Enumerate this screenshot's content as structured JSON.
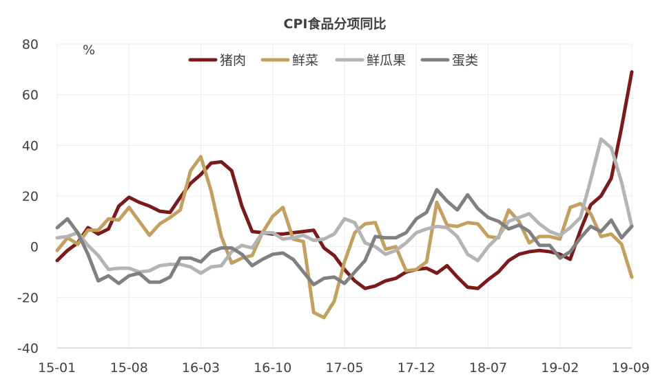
{
  "chart_data": {
    "type": "line",
    "title": "CPI食品分项同比",
    "unit_label": "%",
    "xlabel": "",
    "ylabel": "",
    "ylim": [
      -40,
      80
    ],
    "yticks": [
      "80",
      "60",
      "40",
      "20",
      "0",
      "-20",
      "-40"
    ],
    "ytick_values": [
      80,
      60,
      40,
      20,
      0,
      -20,
      -40
    ],
    "xticks": [
      "15-01",
      "15-08",
      "16-03",
      "16-10",
      "17-05",
      "17-12",
      "18-07",
      "19-02",
      "19-09"
    ],
    "xtick_index": [
      0,
      7,
      14,
      21,
      28,
      35,
      42,
      49,
      56
    ],
    "grid": true,
    "legend_position": "top",
    "x": [
      "15-01",
      "15-02",
      "15-03",
      "15-04",
      "15-05",
      "15-06",
      "15-07",
      "15-08",
      "15-09",
      "15-10",
      "15-11",
      "15-12",
      "16-01",
      "16-02",
      "16-03",
      "16-04",
      "16-05",
      "16-06",
      "16-07",
      "16-08",
      "16-09",
      "16-10",
      "16-11",
      "16-12",
      "17-01",
      "17-02",
      "17-03",
      "17-04",
      "17-05",
      "17-06",
      "17-07",
      "17-08",
      "17-09",
      "17-10",
      "17-11",
      "17-12",
      "18-01",
      "18-02",
      "18-03",
      "18-04",
      "18-05",
      "18-06",
      "18-07",
      "18-08",
      "18-09",
      "18-10",
      "18-11",
      "18-12",
      "19-01",
      "19-02",
      "19-03",
      "19-04",
      "19-05",
      "19-06",
      "19-07",
      "19-08",
      "19-09"
    ],
    "series": [
      {
        "name": "猪肉",
        "color": "#7b1a1a",
        "values": [
          -5.5,
          -1.5,
          1.5,
          7.5,
          5,
          7,
          16,
          19.5,
          17.5,
          16,
          14,
          13.5,
          19.5,
          25,
          28.5,
          33,
          33.5,
          30,
          16,
          6,
          5.5,
          5,
          5,
          5.5,
          6,
          6.5,
          -0.5,
          -3.5,
          -9,
          -13.5,
          -16.5,
          -15.5,
          -13.5,
          -12.5,
          -10,
          -9,
          -8.5,
          -10.5,
          -7.5,
          -12,
          -16,
          -16.5,
          -13,
          -10,
          -5.5,
          -3,
          -2,
          -1.5,
          -2,
          -3,
          -5,
          6.5,
          16.5,
          20,
          27,
          47,
          69
        ]
      },
      {
        "name": "鲜菜",
        "color": "#c4a060",
        "values": [
          -1.5,
          3.5,
          1,
          6.5,
          6.5,
          11,
          10.5,
          15.5,
          10,
          4.5,
          9,
          11.5,
          14.5,
          30,
          35.5,
          22,
          4,
          -6.5,
          -4.5,
          -3.5,
          5.5,
          12,
          15.5,
          3,
          2,
          -26,
          -28,
          -21.5,
          -6,
          5.5,
          9,
          9.5,
          -1,
          0,
          -9.5,
          -9,
          -6,
          17.5,
          8.5,
          8,
          9.5,
          9,
          4,
          3.5,
          14.5,
          10,
          1.5,
          4,
          4,
          3,
          15.5,
          17,
          13,
          4,
          5,
          1,
          -12
        ]
      },
      {
        "name": "鲜瓜果",
        "color": "#b4b4b4",
        "values": [
          3.5,
          4,
          5.5,
          0.5,
          -3.5,
          -9,
          -8.5,
          -8.5,
          -10,
          -9.5,
          -7.5,
          -7,
          -7,
          -8,
          -10.5,
          -8,
          -7.5,
          -2,
          0.5,
          -0.5,
          5.5,
          5.5,
          3,
          3.5,
          4.5,
          2.5,
          3,
          5,
          11,
          9.5,
          1.5,
          0,
          -3,
          -1.5,
          1.5,
          5.5,
          7,
          8,
          7.5,
          4,
          -3,
          -5.5,
          0,
          4,
          10,
          11.5,
          13,
          9,
          6,
          4.5,
          7.5,
          11.5,
          26.5,
          42.5,
          39,
          25.5,
          8
        ]
      },
      {
        "name": "蛋类",
        "color": "#808080",
        "values": [
          7.5,
          11,
          5.5,
          -3,
          -13.5,
          -11.5,
          -14.5,
          -11.5,
          -10.5,
          -14,
          -14,
          -12,
          -4.5,
          -4.5,
          -6,
          -2,
          -0.5,
          -0.5,
          -3,
          -7.5,
          -5,
          -3,
          -2.5,
          -5,
          -10,
          -15,
          -12.5,
          -12,
          -14.5,
          -10,
          -5.5,
          4,
          3.5,
          3.5,
          5.5,
          11,
          13.5,
          22.5,
          18,
          14.5,
          20.5,
          15,
          11.5,
          10,
          7,
          8.5,
          6,
          0.5,
          0.5,
          -4.5,
          -2,
          3.5,
          8,
          6,
          10.5,
          3.5,
          8
        ]
      }
    ]
  }
}
